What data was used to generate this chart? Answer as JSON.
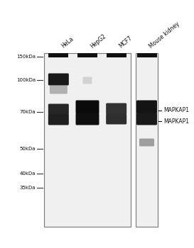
{
  "fig_width": 2.73,
  "fig_height": 3.5,
  "dpi": 100,
  "bg_color": "#ffffff",
  "gel_bg": "#e8e8e8",
  "gel_border": "#888888",
  "mw_labels": [
    "150kDa",
    "100kDa",
    "70kDa",
    "50kDa",
    "40kDa",
    "35kDa"
  ],
  "lane_labels": [
    "HeLa",
    "HepG2",
    "MCF7",
    "Mouse kidney"
  ],
  "band_annots": [
    "MAPKAP1",
    "MAPKAP1"
  ],
  "header_color": "#111111",
  "band_dark": "#0d0d0d",
  "band_mid": "#2a2a2a",
  "band_faint": "#999999"
}
